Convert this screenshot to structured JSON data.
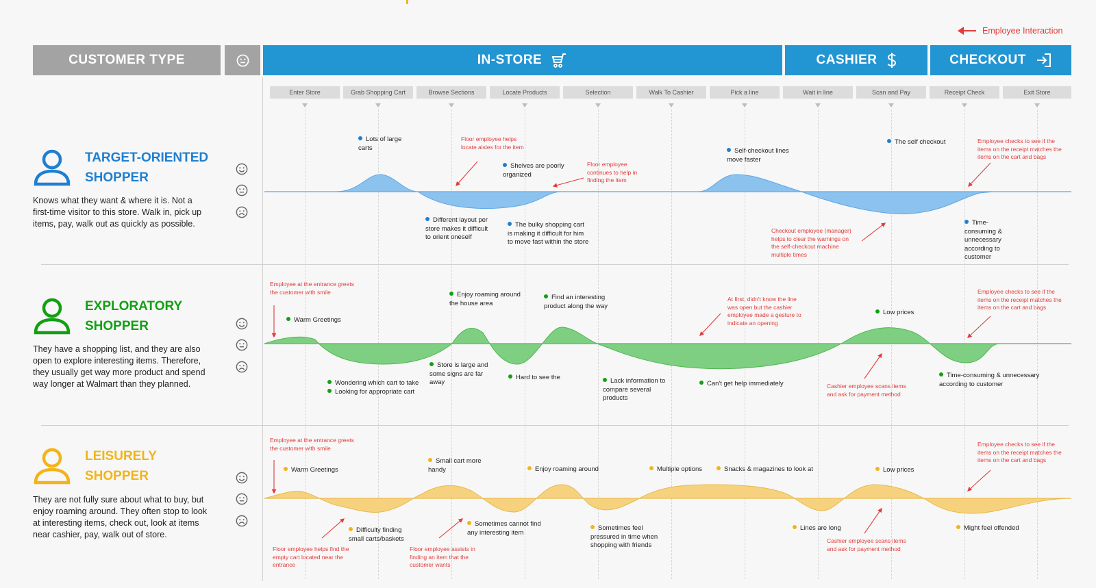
{
  "legend": {
    "label": "Employee Interaction",
    "arrow_color": "#e23b3b"
  },
  "headers": {
    "customer_type": "CUSTOMER TYPE",
    "in_store": "IN-STORE",
    "cashier": "CASHIER",
    "checkout": "CHECKOUT"
  },
  "steps": [
    "Enter Store",
    "Grab Shopping Cart",
    "Browse Sections",
    "Locate Products",
    "Selection",
    "Walk To Cashier",
    "Pick a line",
    "Wait in line",
    "Scan and Pay",
    "Receipt Check",
    "Exit Store"
  ],
  "colors": {
    "header_gray": "#a3a3a3",
    "header_blue": "#2295d3",
    "employee_red": "#e23b3b"
  },
  "personas": [
    {
      "title_line1": "TARGET-ORIENTED",
      "title_line2": "SHOPPER",
      "description": "Knows what they want & where it is. Not a first-time visitor to this store. Walk in, pick up items, pay, walk out as quickly as possible.",
      "color": "#1f7fd1",
      "curve_fill": "#8cc2ee",
      "notes": [
        "Lots of large carts",
        "Shelves are poorly organized",
        "Different layout per store makes it difficult to orient oneself",
        "The bulky shopping cart is making it difficult for him to move fast within the store",
        "Self-checkout lines move faster",
        "The self checkout",
        "Time-consuming & unnecessary according to customer"
      ],
      "employee_notes": [
        "Floor employee helps locate aisles for the item",
        "Floor employee continues to help in finding the item",
        "Checkout employee (manager) helps to clear the warnings on the self-checkout machine multiple times",
        "Employee checks to see if the items on the receipt matches the items on the cart and bags"
      ]
    },
    {
      "title_line1": "EXPLORATORY",
      "title_line2": "SHOPPER",
      "description": "They have a shopping list, and they are also open to explore interesting items. Therefore, they usually get way more product and spend way longer at Walmart than they planned.",
      "color": "#12a012",
      "curve_fill": "#7fcf83",
      "notes": [
        "Warm Greetings",
        "Wondering which cart to take",
        "Looking for appropriate cart",
        "Enjoy roaming around the house area",
        "Store is large and some signs are far away",
        "Find an interesting product along the way",
        "Hard to see the",
        "Lack information to compare several products",
        "Can't get help immediately",
        "Low prices",
        "Time-consuming & unnecessary according to customer"
      ],
      "employee_notes": [
        "Employee at the entrance greets the customer with smile",
        "At first, didn't know the line was open but the cashier employee made a gesture to indicate an opening",
        "Cashier employee scans items and ask for payment method",
        "Employee checks to see if the items on the receipt matches the items on the cart and bags"
      ]
    },
    {
      "title_line1": "LEISURELY",
      "title_line2": "SHOPPER",
      "description": "They are not fully sure about what to buy, but enjoy roaming around. They often stop to look at interesting items, check out, look at items near cashier, pay, walk out of store.",
      "color": "#f2b417",
      "curve_fill": "#f7d27e",
      "notes": [
        "Warm Greetings",
        "Small cart more handy",
        "Enjoy roaming around",
        "Multiple options",
        "Snacks & magazines to look at",
        "Low prices",
        "Difficulty finding small carts/baskets",
        "Sometimes cannot find any interesting item",
        "Sometimes feel pressured in time when shopping with friends",
        "Lines are long",
        "Might feel offended"
      ],
      "employee_notes": [
        "Employee at the entrance greets the customer with smile",
        "Floor employee helps find the empty cart located near the entrance",
        "Floor employee assists in finding an item that the customer wants",
        "Cashier employee scans items and ask for payment method",
        "Employee checks to see if the items on the receipt matches the items on the cart and bags"
      ]
    }
  ]
}
